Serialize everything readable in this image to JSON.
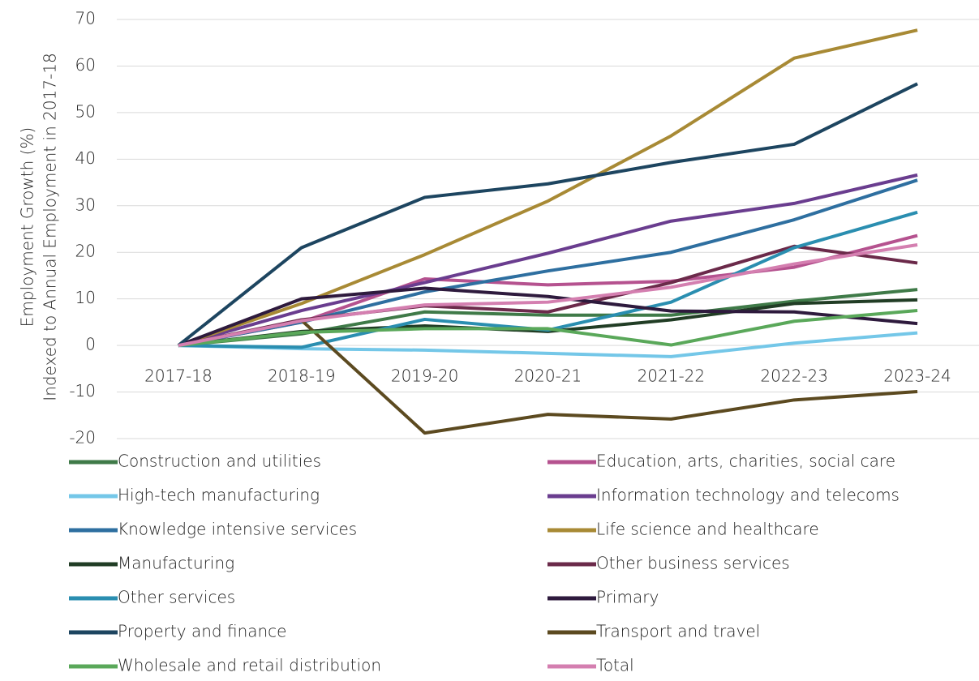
{
  "chart_data": {
    "type": "line",
    "ylabel": [
      "Employment Growth (%)",
      "Indexed to Annual Employment in 2017-18"
    ],
    "categories": [
      "2017-18",
      "2018-19",
      "2019-20",
      "2020-21",
      "2021-22",
      "2022-23",
      "2023-24"
    ],
    "ylim": [
      -20,
      70
    ],
    "yticks": [
      -20,
      -10,
      0,
      10,
      20,
      30,
      40,
      50,
      60,
      70
    ],
    "grid": true,
    "series": [
      {
        "name": "Construction and utilities",
        "color": "#3f7a48",
        "values": [
          0,
          2.5,
          7.2,
          6.5,
          6.5,
          9.5,
          12
        ]
      },
      {
        "name": "Education, arts, charities, social care",
        "color": "#b5528f",
        "values": [
          0,
          5,
          14.3,
          13,
          13.8,
          16.8,
          23.6
        ]
      },
      {
        "name": "High-tech manufacturing",
        "color": "#74c7e8",
        "values": [
          0,
          -0.7,
          -1,
          -1.7,
          -2.4,
          0.5,
          2.7
        ]
      },
      {
        "name": "Information technology and telecoms",
        "color": "#6a3d8f",
        "values": [
          0,
          7.5,
          13.5,
          19.8,
          26.7,
          30.5,
          36.6
        ]
      },
      {
        "name": "Knowledge intensive services",
        "color": "#2e6fa0",
        "values": [
          0,
          5,
          11.5,
          16,
          20,
          27,
          35.5
        ]
      },
      {
        "name": "Life science and healthcare",
        "color": "#a88a35",
        "values": [
          0,
          9,
          19.5,
          31,
          45,
          61.7,
          67.7
        ]
      },
      {
        "name": "Manufacturing",
        "color": "#213d25",
        "values": [
          0,
          3,
          4.2,
          3,
          5.5,
          9,
          9.8
        ]
      },
      {
        "name": "Other business services",
        "color": "#6b2a4a",
        "values": [
          0,
          5.5,
          8.5,
          7.2,
          13.5,
          21.3,
          17.7
        ]
      },
      {
        "name": "Other services",
        "color": "#2a8eb0",
        "values": [
          0,
          -0.4,
          5.6,
          3.3,
          9.3,
          21,
          28.6
        ]
      },
      {
        "name": "Primary",
        "color": "#2e1a3d",
        "values": [
          0,
          10,
          12.3,
          10.5,
          7.4,
          7.2,
          4.7
        ]
      },
      {
        "name": "Property and finance",
        "color": "#1d4560",
        "values": [
          0,
          21,
          31.8,
          34.7,
          39.3,
          43.2,
          56.2
        ]
      },
      {
        "name": "Transport and travel",
        "color": "#5c4a20",
        "values": [
          null,
          5.4,
          -18.8,
          -14.8,
          -15.8,
          -11.7,
          -9.9
        ]
      },
      {
        "name": "Wholesale and retail distribution",
        "color": "#5aa85a",
        "values": [
          0,
          2.8,
          3.6,
          3.6,
          0.1,
          5.2,
          7.5
        ]
      },
      {
        "name": "Total",
        "color": "#d47fb0",
        "values": [
          0,
          5.3,
          8.7,
          9.3,
          12.5,
          17.5,
          21.6
        ]
      }
    ]
  }
}
